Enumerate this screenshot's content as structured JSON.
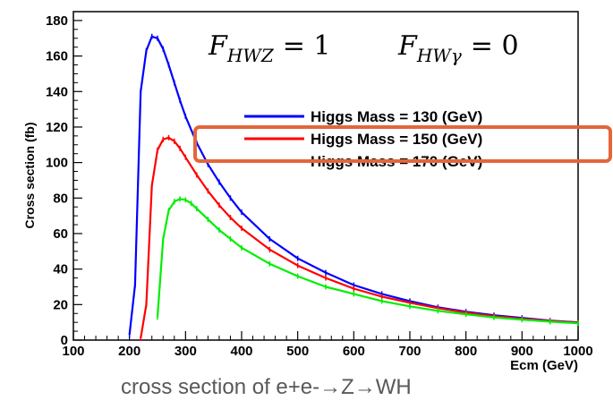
{
  "chart_data": {
    "type": "line",
    "xlabel": "Ecm (GeV)",
    "ylabel": "Cross section (fb)",
    "xlim": [
      100,
      1000
    ],
    "ylim": [
      0,
      185
    ],
    "xticks": [
      "100",
      "200",
      "300",
      "400",
      "500",
      "600",
      "700",
      "800",
      "900",
      "1000"
    ],
    "yticks": [
      "0",
      "20",
      "40",
      "60",
      "80",
      "100",
      "120",
      "140",
      "160",
      "180"
    ],
    "grid": false,
    "legend_position": "top-right",
    "series": [
      {
        "name": "Higgs Mass = 130 (GeV)",
        "color": "#0000ff",
        "x": [
          200,
          210,
          220,
          230,
          240,
          250,
          260,
          270,
          280,
          290,
          300,
          320,
          340,
          360,
          380,
          400,
          450,
          500,
          550,
          600,
          650,
          700,
          750,
          800,
          850,
          900,
          950,
          1000
        ],
        "y": [
          3,
          31,
          140,
          163,
          171,
          170,
          164,
          155,
          145,
          135,
          126,
          111,
          99,
          89,
          80,
          72,
          57,
          46,
          38,
          31,
          26,
          22,
          18.5,
          16,
          14,
          12.5,
          11,
          10
        ]
      },
      {
        "name": "Higgs Mass = 150 (GeV)",
        "color": "#ff0000",
        "x": [
          220,
          230,
          240,
          250,
          260,
          270,
          280,
          290,
          300,
          320,
          340,
          360,
          380,
          400,
          450,
          500,
          550,
          600,
          650,
          700,
          750,
          800,
          850,
          900,
          950,
          1000
        ],
        "y": [
          1,
          20,
          87,
          107,
          113,
          114,
          112,
          108,
          103,
          93,
          84,
          76,
          69,
          63,
          51,
          42,
          35,
          29,
          24.5,
          21,
          18,
          15.5,
          13.5,
          12,
          10.8,
          9.8
        ]
      },
      {
        "name": "Higgs Mass = 170 (GeV)",
        "color": "#00ee00",
        "x": [
          250,
          260,
          270,
          280,
          290,
          300,
          310,
          320,
          340,
          360,
          380,
          400,
          450,
          500,
          550,
          600,
          650,
          700,
          750,
          800,
          850,
          900,
          950,
          1000
        ],
        "y": [
          13,
          57,
          73,
          78,
          79.5,
          79,
          77,
          74,
          68,
          62,
          57,
          52,
          43,
          36,
          30,
          26,
          22,
          19,
          16.5,
          14.5,
          12.8,
          11.5,
          10.4,
          9.5
        ]
      }
    ]
  },
  "formula": {
    "left_main": "F",
    "left_sub": "HWZ",
    "left_rhs": "= 1",
    "right_main": "F",
    "right_sub": "HWγ",
    "right_rhs": "= 0"
  },
  "caption": "cross section of e+e-→Z→WH",
  "highlight_color": "#e3663b"
}
